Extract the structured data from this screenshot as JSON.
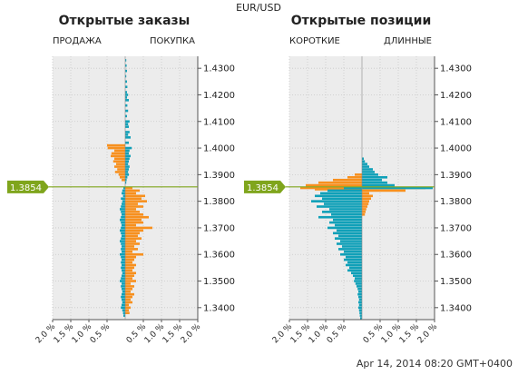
{
  "header": {
    "pair": "EUR/USD"
  },
  "footer": {
    "timestamp": "Apr 14, 2014 08:20 GMT+0400"
  },
  "current_price": "1.3854",
  "colors": {
    "sell": "#f7901e",
    "buy": "#10a0b8",
    "price_line": "#7fa51c",
    "grid": "#c8c8c8",
    "plot_bg": "#ececec"
  },
  "chart_data": [
    {
      "type": "bar",
      "title": "Открытые заказы",
      "left_label": "ПРОДАЖА",
      "right_label": "ПОКУПКА",
      "orientation": "horizontal",
      "x_ticks": [
        "2.0 %",
        "1.5 %",
        "1.0 %",
        "0.5 %",
        "0.5 %",
        "1.0 %",
        "1.5 %",
        "2.0 %"
      ],
      "y_ticks": [
        "1.4300",
        "1.4200",
        "1.4100",
        "1.4000",
        "1.3900",
        "1.3800",
        "1.3700",
        "1.3600",
        "1.3500",
        "1.3400"
      ],
      "y_range": [
        1.3355,
        1.4345
      ],
      "x_range": [
        -2.0,
        2.0
      ],
      "series": [
        {
          "color": "sell",
          "points": [
            [
              1.401,
              -0.5
            ],
            [
              1.4,
              -0.48
            ],
            [
              1.399,
              -0.3
            ],
            [
              1.398,
              -0.38
            ],
            [
              1.397,
              -0.4
            ],
            [
              1.396,
              -0.3
            ],
            [
              1.395,
              -0.33
            ],
            [
              1.394,
              -0.25
            ],
            [
              1.393,
              -0.3
            ],
            [
              1.392,
              -0.22
            ],
            [
              1.391,
              -0.28
            ],
            [
              1.39,
              -0.18
            ],
            [
              1.389,
              -0.15
            ],
            [
              1.388,
              -0.1
            ],
            [
              1.385,
              0.2
            ],
            [
              1.384,
              0.4
            ],
            [
              1.383,
              0.3
            ],
            [
              1.382,
              0.55
            ],
            [
              1.381,
              0.45
            ],
            [
              1.38,
              0.6
            ],
            [
              1.379,
              0.35
            ],
            [
              1.378,
              0.5
            ],
            [
              1.377,
              0.3
            ],
            [
              1.376,
              0.4
            ],
            [
              1.375,
              0.5
            ],
            [
              1.374,
              0.65
            ],
            [
              1.373,
              0.45
            ],
            [
              1.372,
              0.5
            ],
            [
              1.371,
              0.3
            ],
            [
              1.37,
              0.75
            ],
            [
              1.369,
              0.5
            ],
            [
              1.368,
              0.4
            ],
            [
              1.367,
              0.35
            ],
            [
              1.366,
              0.45
            ],
            [
              1.365,
              0.3
            ],
            [
              1.364,
              0.4
            ],
            [
              1.363,
              0.25
            ],
            [
              1.362,
              0.35
            ],
            [
              1.361,
              0.2
            ],
            [
              1.36,
              0.5
            ],
            [
              1.359,
              0.3
            ],
            [
              1.358,
              0.25
            ],
            [
              1.357,
              0.2
            ],
            [
              1.356,
              0.3
            ],
            [
              1.355,
              0.25
            ],
            [
              1.354,
              0.2
            ],
            [
              1.353,
              0.3
            ],
            [
              1.352,
              0.25
            ],
            [
              1.351,
              0.2
            ],
            [
              1.35,
              0.3
            ],
            [
              1.349,
              0.15
            ],
            [
              1.348,
              0.25
            ],
            [
              1.347,
              0.2
            ],
            [
              1.346,
              0.15
            ],
            [
              1.345,
              0.25
            ],
            [
              1.344,
              0.2
            ],
            [
              1.343,
              0.15
            ],
            [
              1.342,
              0.2
            ],
            [
              1.341,
              0.1
            ],
            [
              1.34,
              0.15
            ],
            [
              1.339,
              0.1
            ],
            [
              1.338,
              0.12
            ]
          ]
        },
        {
          "color": "buy",
          "points": [
            [
              1.433,
              0.03
            ],
            [
              1.431,
              0.04
            ],
            [
              1.429,
              0.05
            ],
            [
              1.427,
              0.03
            ],
            [
              1.425,
              0.05
            ],
            [
              1.423,
              0.06
            ],
            [
              1.421,
              0.05
            ],
            [
              1.42,
              0.08
            ],
            [
              1.419,
              0.05
            ],
            [
              1.418,
              0.1
            ],
            [
              1.416,
              0.06
            ],
            [
              1.414,
              0.08
            ],
            [
              1.412,
              0.05
            ],
            [
              1.41,
              0.12
            ],
            [
              1.409,
              0.08
            ],
            [
              1.408,
              0.1
            ],
            [
              1.406,
              0.12
            ],
            [
              1.405,
              0.08
            ],
            [
              1.404,
              0.15
            ],
            [
              1.402,
              0.1
            ],
            [
              1.4,
              0.18
            ],
            [
              1.399,
              0.12
            ],
            [
              1.398,
              0.1
            ],
            [
              1.397,
              0.15
            ],
            [
              1.396,
              0.12
            ],
            [
              1.395,
              0.1
            ],
            [
              1.394,
              0.08
            ],
            [
              1.393,
              0.12
            ],
            [
              1.392,
              0.1
            ],
            [
              1.391,
              0.08
            ],
            [
              1.39,
              0.1
            ],
            [
              1.389,
              0.06
            ],
            [
              1.388,
              0.04
            ],
            [
              1.387,
              0.03
            ],
            [
              1.385,
              -0.05
            ],
            [
              1.384,
              -0.08
            ],
            [
              1.383,
              -0.1
            ],
            [
              1.382,
              -0.06
            ],
            [
              1.381,
              -0.12
            ],
            [
              1.38,
              -0.08
            ],
            [
              1.379,
              -0.1
            ],
            [
              1.378,
              -0.12
            ],
            [
              1.377,
              -0.15
            ],
            [
              1.376,
              -0.12
            ],
            [
              1.375,
              -0.1
            ],
            [
              1.374,
              -0.12
            ],
            [
              1.373,
              -0.15
            ],
            [
              1.372,
              -0.12
            ],
            [
              1.371,
              -0.1
            ],
            [
              1.37,
              -0.12
            ],
            [
              1.369,
              -0.15
            ],
            [
              1.368,
              -0.12
            ],
            [
              1.367,
              -0.1
            ],
            [
              1.366,
              -0.12
            ],
            [
              1.365,
              -0.15
            ],
            [
              1.364,
              -0.12
            ],
            [
              1.363,
              -0.1
            ],
            [
              1.362,
              -0.12
            ],
            [
              1.361,
              -0.1
            ],
            [
              1.36,
              -0.15
            ],
            [
              1.359,
              -0.12
            ],
            [
              1.358,
              -0.1
            ],
            [
              1.357,
              -0.12
            ],
            [
              1.356,
              -0.1
            ],
            [
              1.355,
              -0.12
            ],
            [
              1.354,
              -0.1
            ],
            [
              1.353,
              -0.08
            ],
            [
              1.352,
              -0.1
            ],
            [
              1.351,
              -0.12
            ],
            [
              1.35,
              -0.15
            ],
            [
              1.349,
              -0.1
            ],
            [
              1.348,
              -0.12
            ],
            [
              1.347,
              -0.1
            ],
            [
              1.346,
              -0.08
            ],
            [
              1.345,
              -0.1
            ],
            [
              1.344,
              -0.12
            ],
            [
              1.343,
              -0.1
            ],
            [
              1.342,
              -0.08
            ],
            [
              1.341,
              -0.1
            ],
            [
              1.34,
              -0.12
            ],
            [
              1.339,
              -0.08
            ],
            [
              1.338,
              -0.06
            ],
            [
              1.337,
              -0.05
            ]
          ]
        }
      ]
    },
    {
      "type": "bar",
      "title": "Открытые позиции",
      "left_label": "КОРОТКИЕ",
      "right_label": "ДЛИННЫЕ",
      "orientation": "horizontal",
      "x_ticks": [
        "2.0 %",
        "1.5 %",
        "1.0 %",
        "0.5 %",
        "0.5 %",
        "1.0 %",
        "1.5 %",
        "2.0 %"
      ],
      "y_ticks": [
        "1.4300",
        "1.4200",
        "1.4100",
        "1.4000",
        "1.3900",
        "1.3800",
        "1.3700",
        "1.3600",
        "1.3500",
        "1.3400"
      ],
      "y_range": [
        1.3355,
        1.4345
      ],
      "x_range": [
        -2.0,
        2.0
      ],
      "series": [
        {
          "color": "sell",
          "points": [
            [
              1.39,
              -0.2
            ],
            [
              1.389,
              -0.4
            ],
            [
              1.388,
              -0.8
            ],
            [
              1.387,
              -1.2
            ],
            [
              1.386,
              -1.55
            ],
            [
              1.385,
              -1.7
            ],
            [
              1.3845,
              -1.3
            ],
            [
              1.385,
              1.75
            ],
            [
              1.384,
              1.2
            ],
            [
              1.383,
              0.2
            ],
            [
              1.382,
              0.3
            ],
            [
              1.381,
              0.25
            ],
            [
              1.38,
              0.2
            ],
            [
              1.379,
              0.18
            ],
            [
              1.378,
              0.15
            ],
            [
              1.377,
              0.12
            ],
            [
              1.376,
              0.1
            ],
            [
              1.375,
              0.08
            ]
          ]
        },
        {
          "color": "buy",
          "points": [
            [
              1.396,
              0.05
            ],
            [
              1.395,
              0.08
            ],
            [
              1.394,
              0.15
            ],
            [
              1.393,
              0.2
            ],
            [
              1.392,
              0.3
            ],
            [
              1.391,
              0.35
            ],
            [
              1.39,
              0.45
            ],
            [
              1.389,
              0.7
            ],
            [
              1.388,
              0.55
            ],
            [
              1.387,
              0.7
            ],
            [
              1.386,
              0.9
            ],
            [
              1.385,
              1.95
            ],
            [
              1.385,
              -0.5
            ],
            [
              1.384,
              -0.95
            ],
            [
              1.383,
              -1.15
            ],
            [
              1.382,
              -1.3
            ],
            [
              1.381,
              -1.1
            ],
            [
              1.38,
              -1.4
            ],
            [
              1.379,
              -1.05
            ],
            [
              1.378,
              -1.25
            ],
            [
              1.377,
              -0.9
            ],
            [
              1.376,
              -1.1
            ],
            [
              1.375,
              -0.85
            ],
            [
              1.374,
              -1.2
            ],
            [
              1.373,
              -0.8
            ],
            [
              1.372,
              -0.9
            ],
            [
              1.371,
              -0.75
            ],
            [
              1.37,
              -0.95
            ],
            [
              1.369,
              -0.7
            ],
            [
              1.368,
              -0.8
            ],
            [
              1.367,
              -0.65
            ],
            [
              1.366,
              -0.75
            ],
            [
              1.365,
              -0.6
            ],
            [
              1.364,
              -0.7
            ],
            [
              1.363,
              -0.55
            ],
            [
              1.362,
              -0.65
            ],
            [
              1.361,
              -0.5
            ],
            [
              1.36,
              -0.6
            ],
            [
              1.359,
              -0.45
            ],
            [
              1.358,
              -0.5
            ],
            [
              1.357,
              -0.4
            ],
            [
              1.356,
              -0.45
            ],
            [
              1.355,
              -0.35
            ],
            [
              1.354,
              -0.4
            ],
            [
              1.353,
              -0.3
            ],
            [
              1.352,
              -0.25
            ],
            [
              1.351,
              -0.2
            ],
            [
              1.35,
              -0.22
            ],
            [
              1.349,
              -0.18
            ],
            [
              1.348,
              -0.15
            ],
            [
              1.347,
              -0.12
            ],
            [
              1.346,
              -0.1
            ],
            [
              1.345,
              -0.12
            ],
            [
              1.344,
              -0.1
            ],
            [
              1.343,
              -0.08
            ],
            [
              1.342,
              -0.1
            ],
            [
              1.341,
              -0.08
            ],
            [
              1.34,
              -0.1
            ],
            [
              1.339,
              -0.08
            ],
            [
              1.338,
              -0.07
            ],
            [
              1.337,
              -0.06
            ],
            [
              1.336,
              -0.05
            ]
          ]
        }
      ]
    }
  ]
}
